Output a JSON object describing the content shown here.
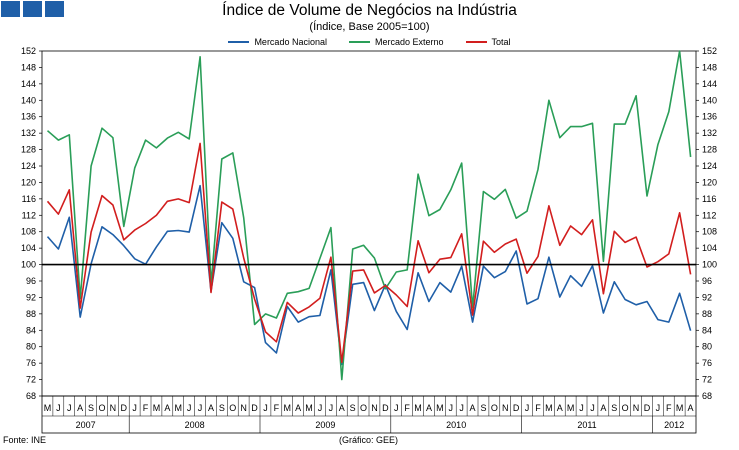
{
  "chart_data": {
    "type": "line",
    "title": "Índice de Volume de Negócios na Indústria",
    "subtitle": "(Índice, Base 2005=100)",
    "source": "Fonte: INE",
    "credit": "(Gráfico: GEE)",
    "y_ticks": [
      68,
      72,
      76,
      80,
      84,
      88,
      92,
      96,
      100,
      104,
      108,
      112,
      116,
      120,
      124,
      128,
      132,
      136,
      140,
      144,
      148,
      152
    ],
    "ylim": [
      68,
      152
    ],
    "reference_line": 100,
    "month_labels": [
      "M",
      "J",
      "J",
      "A",
      "S",
      "O",
      "N",
      "D",
      "J",
      "F",
      "M",
      "A",
      "M",
      "J",
      "J",
      "A",
      "S",
      "O",
      "N",
      "D",
      "J",
      "F",
      "M",
      "A",
      "M",
      "J",
      "J",
      "A",
      "S",
      "O",
      "N",
      "D",
      "J",
      "F",
      "M",
      "A",
      "M",
      "J",
      "J",
      "A",
      "S",
      "O",
      "N",
      "D",
      "J",
      "F",
      "M",
      "A",
      "M",
      "J",
      "J",
      "A",
      "S",
      "O",
      "N",
      "D",
      "J",
      "F",
      "M",
      "A"
    ],
    "years": [
      {
        "label": "2007",
        "start": 0,
        "count": 8
      },
      {
        "label": "2008",
        "start": 8,
        "count": 12
      },
      {
        "label": "2009",
        "start": 20,
        "count": 12
      },
      {
        "label": "2010",
        "start": 32,
        "count": 12
      },
      {
        "label": "2011",
        "start": 44,
        "count": 12
      },
      {
        "label": "2012",
        "start": 56,
        "count": 4
      }
    ],
    "series": [
      {
        "name": "Mercado Nacional",
        "color": "#1f5fa8",
        "values": [
          106.8,
          103.8,
          111.5,
          87.2,
          100.2,
          109.2,
          107.3,
          104.6,
          101.4,
          100.1,
          104.3,
          108.1,
          108.3,
          107.9,
          119.2,
          93.5,
          110.2,
          106.4,
          95.8,
          94.4,
          81,
          78.5,
          89.8,
          86,
          87.3,
          87.6,
          98.7,
          75.7,
          95.2,
          95.6,
          88.8,
          95.1,
          88.6,
          84.2,
          98,
          91,
          95.6,
          93.3,
          99.6,
          86,
          99.6,
          96.8,
          98.3,
          103.3,
          90.4,
          91.7,
          101.8,
          92.1,
          97.3,
          94.7,
          99.7,
          88.2,
          95.8,
          91.5,
          90.2,
          91,
          86.6,
          86,
          93,
          83.9
        ]
      },
      {
        "name": "Mercado Externo",
        "color": "#2a9e58",
        "values": [
          132.6,
          130.3,
          131.6,
          91.7,
          124,
          133.2,
          130.9,
          109.3,
          123.5,
          130.3,
          128.4,
          130.8,
          132.2,
          130.6,
          150.6,
          95.2,
          125.7,
          127.2,
          111.4,
          85.4,
          88,
          87,
          93,
          93.4,
          94.2,
          101.5,
          109,
          72,
          103.8,
          104.7,
          101.6,
          94.1,
          98.2,
          98.7,
          122,
          111.9,
          113.4,
          118.2,
          124.7,
          89.5,
          117.8,
          115.9,
          118.3,
          111.3,
          113,
          123.2,
          140,
          130.9,
          133.6,
          133.6,
          134.4,
          100.8,
          134.2,
          134.2,
          141.1,
          116.7,
          129.2,
          137.2,
          152,
          126.2
        ]
      },
      {
        "name": "Total",
        "color": "#d21e1e",
        "values": [
          115.4,
          112.3,
          118.2,
          89.4,
          107.9,
          116.8,
          114.5,
          106,
          108.4,
          110,
          112,
          115.4,
          116,
          115.1,
          129.5,
          93.2,
          115.2,
          113.5,
          101.6,
          91.6,
          83.6,
          81.2,
          90.8,
          88.2,
          89.7,
          91.8,
          101.8,
          76.2,
          98.4,
          98.7,
          93.1,
          94.9,
          92.6,
          89.8,
          105.8,
          98,
          101.3,
          101.7,
          107.5,
          87.7,
          105.7,
          103,
          105,
          106.2,
          97.9,
          102,
          114.3,
          104.7,
          109.4,
          107.3,
          110.9,
          92.9,
          108.1,
          105.4,
          106.7,
          99.4,
          100.7,
          102.6,
          112.6,
          97.6
        ]
      }
    ]
  }
}
